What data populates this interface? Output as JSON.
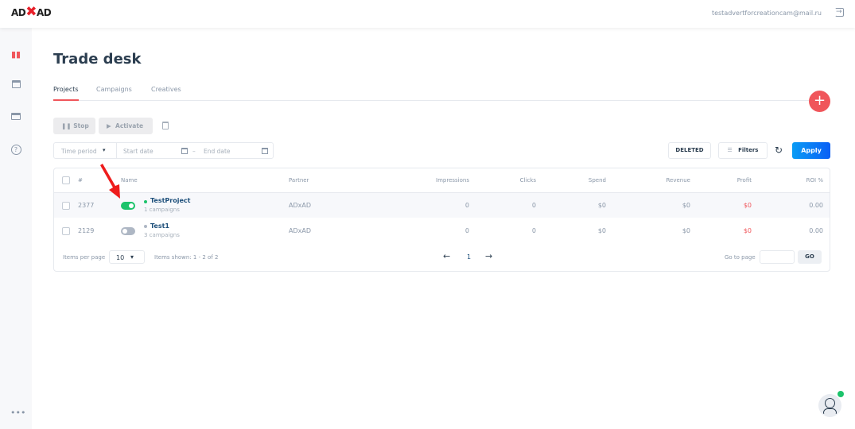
{
  "header": {
    "logo": "ADXAD",
    "email": "testadvertforcreationcam@mail.ru"
  },
  "page": {
    "title": "Trade desk"
  },
  "tabs": [
    {
      "label": "Projects",
      "active": true
    },
    {
      "label": "Campaigns"
    },
    {
      "label": "Creatives"
    }
  ],
  "toolbar": {
    "stop": "Stop",
    "activate": "Activate"
  },
  "filters": {
    "time_period": "Time period",
    "start_date": "Start date",
    "dash": "–",
    "end_date": "End date",
    "deleted": "DELETED",
    "filters": "Filters",
    "apply": "Apply"
  },
  "table": {
    "headers": [
      "#",
      "Name",
      "Partner",
      "Impressions",
      "Clicks",
      "Spend",
      "Revenue",
      "Profit",
      "ROI %"
    ],
    "rows": [
      {
        "id": "2377",
        "enabled": true,
        "name": "TestProject",
        "sub": "1 campaigns",
        "partner": "ADxAD",
        "impressions": "0",
        "clicks": "0",
        "spend": "$0",
        "revenue": "$0",
        "profit": "$0",
        "roi": "0.00"
      },
      {
        "id": "2129",
        "enabled": false,
        "name": "Test1",
        "sub": "3 campaigns",
        "partner": "ADxAD",
        "impressions": "0",
        "clicks": "0",
        "spend": "$0",
        "revenue": "$0",
        "profit": "$0",
        "roi": "0.00"
      }
    ]
  },
  "pagination": {
    "items_per_page_label": "Items per page",
    "items_per_page": "10",
    "shown": "Items shown: 1 - 2 of 2",
    "page": "1",
    "goto_label": "Go to page",
    "go": "GO"
  },
  "colors": {
    "accent": "#f0565b",
    "apply": "#0a7cf5",
    "active": "#1cc36b",
    "profit": "#f0565b"
  }
}
